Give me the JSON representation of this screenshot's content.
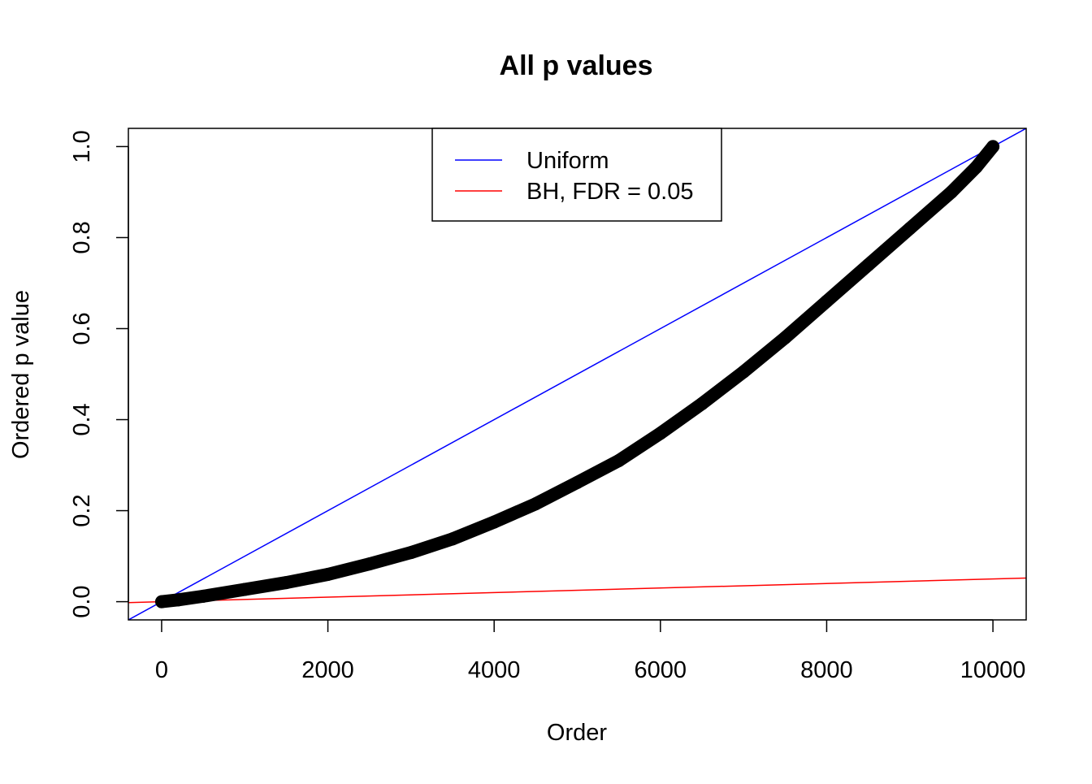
{
  "chart_data": {
    "type": "scatter",
    "title": "All p values",
    "xlabel": "Order",
    "ylabel": "Ordered p value",
    "xlim": [
      -400,
      10400
    ],
    "ylim": [
      -0.04,
      1.04
    ],
    "x_ticks": [
      {
        "value": 0,
        "label": "0"
      },
      {
        "value": 2000,
        "label": "2000"
      },
      {
        "value": 4000,
        "label": "4000"
      },
      {
        "value": 6000,
        "label": "6000"
      },
      {
        "value": 8000,
        "label": "8000"
      },
      {
        "value": 10000,
        "label": "10000"
      }
    ],
    "y_ticks": [
      {
        "value": 0.0,
        "label": "0.0"
      },
      {
        "value": 0.2,
        "label": "0.2"
      },
      {
        "value": 0.4,
        "label": "0.4"
      },
      {
        "value": 0.6,
        "label": "0.6"
      },
      {
        "value": 0.8,
        "label": "0.8"
      },
      {
        "value": 1.0,
        "label": "1.0"
      }
    ],
    "grid": false,
    "points_color": "#000000",
    "series": [
      {
        "kind": "points",
        "x": [
          1,
          200,
          500,
          1000,
          1500,
          2000,
          2500,
          3000,
          3500,
          4000,
          4500,
          5000,
          5500,
          6000,
          6500,
          7000,
          7500,
          8000,
          8500,
          9000,
          9500,
          9800,
          10000
        ],
        "y": [
          0.0,
          0.004,
          0.012,
          0.027,
          0.042,
          0.06,
          0.083,
          0.108,
          0.138,
          0.175,
          0.215,
          0.262,
          0.31,
          0.37,
          0.435,
          0.505,
          0.58,
          0.66,
          0.74,
          0.82,
          0.9,
          0.955,
          1.0
        ]
      },
      {
        "name": "Uniform",
        "kind": "line",
        "color": "#0000ff",
        "intercept": 0,
        "slope": 0.0001
      },
      {
        "name": "BH, FDR = 0.05",
        "kind": "line",
        "color": "#ff0000",
        "intercept": 0,
        "slope": 5e-06
      }
    ],
    "legend": {
      "position": "top-center",
      "entries": [
        {
          "label": "Uniform",
          "color": "#0000ff"
        },
        {
          "label": "BH, FDR = 0.05",
          "color": "#ff0000"
        }
      ]
    }
  }
}
